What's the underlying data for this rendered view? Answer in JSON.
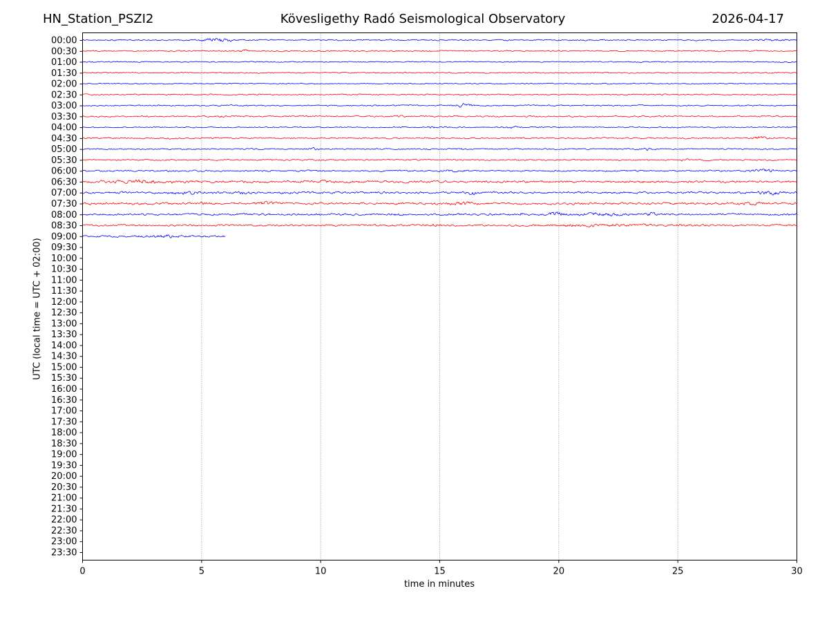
{
  "header": {
    "station": "HN_Station_PSZI2",
    "observatory": "Kövesligethy Radó Seismological Observatory",
    "date": "2026-04-17"
  },
  "axes": {
    "x_label": "time in minutes",
    "y_label": "UTC (local time = UTC + 02:00)",
    "x_ticks": [
      0,
      5,
      10,
      15,
      20,
      25,
      30
    ],
    "x_gridlines": [
      5,
      10,
      15,
      20,
      25
    ],
    "y_ticks": [
      "00:00",
      "00:30",
      "01:00",
      "01:30",
      "02:00",
      "02:30",
      "03:00",
      "03:30",
      "04:00",
      "04:30",
      "05:00",
      "05:30",
      "06:00",
      "06:30",
      "07:00",
      "07:30",
      "08:00",
      "08:30",
      "09:00",
      "09:30",
      "10:00",
      "10:30",
      "11:00",
      "11:30",
      "12:00",
      "12:30",
      "13:00",
      "13:30",
      "14:00",
      "14:30",
      "15:00",
      "15:30",
      "16:00",
      "16:30",
      "17:00",
      "17:30",
      "18:00",
      "18:30",
      "19:00",
      "19:30",
      "20:00",
      "20:30",
      "21:00",
      "21:30",
      "22:00",
      "22:30",
      "23:00",
      "23:30"
    ]
  },
  "colors": {
    "trace_blue": "#0000ff",
    "trace_red": "#ff0000",
    "grid": "#8a8a8a",
    "axis": "#000000",
    "background": "#ffffff"
  },
  "chart_data": {
    "type": "line",
    "subtype": "helicorder-seismogram",
    "title": "HN_Station_PSZI2 — Kövesligethy Radó Seismological Observatory — 2026-04-17",
    "xlabel": "time in minutes",
    "ylabel": "UTC (local time = UTC + 02:00)",
    "x_range": [
      0,
      30
    ],
    "row_interval_minutes": 30,
    "rows_total": 48,
    "grid_on": true,
    "rows": [
      {
        "time": "00:00",
        "color": "blue",
        "start": 0,
        "end": 30,
        "noise_amp": 0.9,
        "events": [
          {
            "t": 5.7,
            "dur": 0.8,
            "amp": 2.6
          },
          {
            "t": 28.9,
            "dur": 0.8,
            "amp": 1.1
          }
        ]
      },
      {
        "time": "00:30",
        "color": "red",
        "start": 0,
        "end": 30,
        "noise_amp": 0.9,
        "events": [
          {
            "t": 6.8,
            "dur": 0.25,
            "amp": 1.5
          }
        ]
      },
      {
        "time": "01:00",
        "color": "blue",
        "start": 0,
        "end": 30,
        "noise_amp": 0.8,
        "events": []
      },
      {
        "time": "01:30",
        "color": "red",
        "start": 0,
        "end": 30,
        "noise_amp": 0.9,
        "events": []
      },
      {
        "time": "02:00",
        "color": "blue",
        "start": 0,
        "end": 30,
        "noise_amp": 0.8,
        "events": []
      },
      {
        "time": "02:30",
        "color": "red",
        "start": 0,
        "end": 30,
        "noise_amp": 0.9,
        "events": []
      },
      {
        "time": "03:00",
        "color": "blue",
        "start": 0,
        "end": 30,
        "noise_amp": 0.9,
        "events": [
          {
            "t": 16.0,
            "dur": 0.5,
            "amp": 2.2
          }
        ]
      },
      {
        "time": "03:30",
        "color": "red",
        "start": 0,
        "end": 30,
        "noise_amp": 1.0,
        "events": [
          {
            "t": 5.9,
            "dur": 0.3,
            "amp": 1.0
          },
          {
            "t": 13.3,
            "dur": 0.4,
            "amp": 1.1
          }
        ]
      },
      {
        "time": "04:00",
        "color": "blue",
        "start": 0,
        "end": 30,
        "noise_amp": 0.8,
        "events": [
          {
            "t": 14.8,
            "dur": 0.5,
            "amp": 0.8
          },
          {
            "t": 18.0,
            "dur": 0.4,
            "amp": 1.2
          }
        ]
      },
      {
        "time": "04:30",
        "color": "red",
        "start": 0,
        "end": 30,
        "noise_amp": 1.0,
        "events": [
          {
            "t": 28.4,
            "dur": 0.5,
            "amp": 1.5
          }
        ]
      },
      {
        "time": "05:00",
        "color": "blue",
        "start": 0,
        "end": 30,
        "noise_amp": 0.9,
        "events": [
          {
            "t": 9.7,
            "dur": 0.4,
            "amp": 1.5
          },
          {
            "t": 15.9,
            "dur": 0.2,
            "amp": 1.2
          },
          {
            "t": 23.7,
            "dur": 0.4,
            "amp": 1.3
          }
        ]
      },
      {
        "time": "05:30",
        "color": "red",
        "start": 0,
        "end": 30,
        "noise_amp": 1.0,
        "events": [
          {
            "t": 25.3,
            "dur": 0.3,
            "amp": 1.6
          }
        ]
      },
      {
        "time": "06:00",
        "color": "blue",
        "start": 0,
        "end": 30,
        "noise_amp": 1.1,
        "events": [
          {
            "t": 15.6,
            "dur": 0.8,
            "amp": 0.9
          },
          {
            "t": 28.7,
            "dur": 1.0,
            "amp": 1.2
          }
        ]
      },
      {
        "time": "06:30",
        "color": "red",
        "start": 0,
        "end": 30,
        "noise_amp": 1.6,
        "events": [
          {
            "t": 2.6,
            "dur": 1.6,
            "amp": 1.5
          },
          {
            "t": 10.2,
            "dur": 0.5,
            "amp": 0.9
          }
        ]
      },
      {
        "time": "07:00",
        "color": "blue",
        "start": 0,
        "end": 30,
        "noise_amp": 1.5,
        "events": [
          {
            "t": 4.4,
            "dur": 0.8,
            "amp": 1.4
          },
          {
            "t": 6.7,
            "dur": 0.3,
            "amp": 1.5
          },
          {
            "t": 16.4,
            "dur": 0.4,
            "amp": 1.9
          },
          {
            "t": 28.8,
            "dur": 0.7,
            "amp": 1.7
          }
        ]
      },
      {
        "time": "07:30",
        "color": "red",
        "start": 0,
        "end": 30,
        "noise_amp": 1.6,
        "events": [
          {
            "t": 5.0,
            "dur": 0.3,
            "amp": 1.2
          },
          {
            "t": 7.7,
            "dur": 0.6,
            "amp": 1.6
          },
          {
            "t": 15.9,
            "dur": 0.8,
            "amp": 1.6
          },
          {
            "t": 28.2,
            "dur": 0.6,
            "amp": 1.6
          }
        ]
      },
      {
        "time": "08:00",
        "color": "blue",
        "start": 0,
        "end": 30,
        "noise_amp": 1.4,
        "events": [
          {
            "t": 13.2,
            "dur": 0.4,
            "amp": 1.2
          },
          {
            "t": 18.4,
            "dur": 0.15,
            "amp": 1.7
          },
          {
            "t": 19.9,
            "dur": 0.4,
            "amp": 2.7
          },
          {
            "t": 21.8,
            "dur": 1.2,
            "amp": 1.3
          },
          {
            "t": 23.9,
            "dur": 0.3,
            "amp": 1.4
          }
        ]
      },
      {
        "time": "08:30",
        "color": "red",
        "start": 0,
        "end": 30,
        "noise_amp": 1.3,
        "events": [
          {
            "t": 14.8,
            "dur": 0.5,
            "amp": 1.3
          },
          {
            "t": 21.5,
            "dur": 2.5,
            "amp": 1.1
          },
          {
            "t": 25.0,
            "dur": 0.3,
            "amp": 1.2
          }
        ]
      },
      {
        "time": "09:00",
        "color": "blue",
        "start": 0,
        "end": 6.0,
        "noise_amp": 1.3,
        "events": [
          {
            "t": 3.4,
            "dur": 1.0,
            "amp": 1.4
          }
        ]
      }
    ]
  }
}
